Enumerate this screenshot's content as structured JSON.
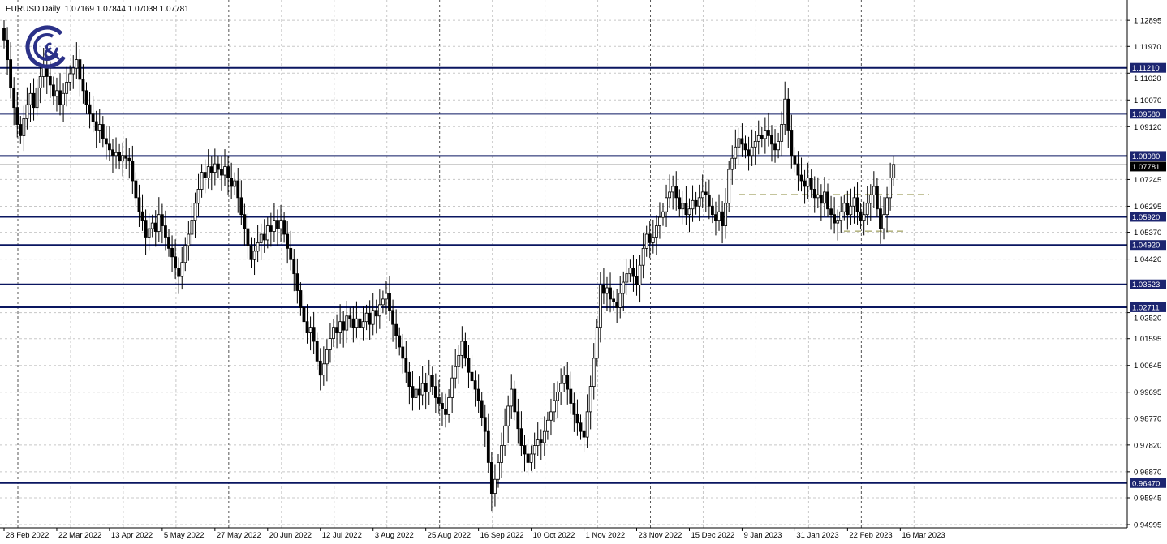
{
  "header": {
    "symbol": "EURUSD,Daily",
    "open": "1.07169",
    "high": "1.07844",
    "low": "1.07038",
    "close": "1.07781"
  },
  "logo": {
    "text": "G&C",
    "color": "#2b3188"
  },
  "colors": {
    "level_line": "#0a1660",
    "level_label_bg": "#1c2570",
    "price_label_bg": "#000000",
    "support_dash": "#8a8a3a",
    "grid": "#c8c8c8"
  },
  "chart_data": {
    "type": "candlestick",
    "title": "EURUSD,Daily",
    "ylim": [
      0.94995,
      1.1335
    ],
    "grid": true,
    "y_ticks": [
      "1.12895",
      "1.11970",
      "1.11020",
      "1.10070",
      "1.09120",
      "1.07245",
      "1.06295",
      "1.05370",
      "1.04420",
      "1.02520",
      "1.01595",
      "1.00645",
      "0.99695",
      "0.98770",
      "0.97820",
      "0.96870",
      "0.95945",
      "0.94995"
    ],
    "x_ticks": [
      "28 Feb 2022",
      "22 Mar 2022",
      "13 Apr 2022",
      "5 May 2022",
      "27 May 2022",
      "20 Jun 2022",
      "12 Jul 2022",
      "3 Aug 2022",
      "25 Aug 2022",
      "16 Sep 2022",
      "10 Oct 2022",
      "1 Nov 2022",
      "23 Nov 2022",
      "15 Dec 2022",
      "9 Jan 2023",
      "31 Jan 2023",
      "22 Feb 2023",
      "16 Mar 2023"
    ],
    "horizontal_levels": [
      "1.11210",
      "1.09580",
      "1.08080",
      "1.05920",
      "1.04920",
      "1.03523",
      "1.02711",
      "0.96470"
    ],
    "current_price": "1.07781",
    "dashed_levels": [
      1.0671,
      1.0541
    ],
    "closes": [
      1.122,
      1.115,
      1.105,
      1.098,
      1.092,
      1.088,
      1.094,
      1.099,
      1.103,
      1.098,
      1.105,
      1.109,
      1.113,
      1.109,
      1.106,
      1.102,
      1.104,
      1.099,
      1.103,
      1.107,
      1.11,
      1.112,
      1.115,
      1.108,
      1.104,
      1.099,
      1.096,
      1.093,
      1.09,
      1.092,
      1.087,
      1.085,
      1.083,
      1.081,
      1.082,
      1.079,
      1.081,
      1.08,
      1.079,
      1.072,
      1.066,
      1.061,
      1.058,
      1.052,
      1.055,
      1.057,
      1.054,
      1.06,
      1.056,
      1.052,
      1.048,
      1.045,
      1.041,
      1.038,
      1.043,
      1.049,
      1.053,
      1.058,
      1.064,
      1.069,
      1.075,
      1.073,
      1.077,
      1.075,
      1.078,
      1.076,
      1.074,
      1.077,
      1.073,
      1.07,
      1.072,
      1.066,
      1.06,
      1.055,
      1.049,
      1.044,
      1.047,
      1.05,
      1.053,
      1.051,
      1.056,
      1.054,
      1.058,
      1.055,
      1.058,
      1.053,
      1.048,
      1.044,
      1.039,
      1.033,
      1.027,
      1.022,
      1.018,
      1.02,
      1.015,
      1.008,
      1.003,
      1.007,
      1.012,
      1.016,
      1.02,
      1.018,
      1.022,
      1.019,
      1.024,
      1.023,
      1.02,
      1.023,
      1.02,
      1.022,
      1.025,
      1.021,
      1.026,
      1.024,
      1.028,
      1.03,
      1.032,
      1.026,
      1.021,
      1.017,
      1.013,
      1.009,
      1.004,
      0.999,
      0.995,
      0.998,
      0.996,
      1.0,
      0.997,
      1.003,
      0.999,
      0.995,
      0.993,
      0.991,
      0.989,
      0.995,
      1.002,
      1.006,
      1.01,
      1.015,
      1.009,
      1.004,
      1.001,
      0.998,
      0.994,
      0.988,
      0.983,
      0.972,
      0.961,
      0.966,
      0.972,
      0.978,
      0.985,
      0.992,
      0.998,
      0.99,
      0.984,
      0.978,
      0.975,
      0.972,
      0.975,
      0.978,
      0.98,
      0.979,
      0.983,
      0.987,
      0.99,
      0.994,
      0.997,
      1.0,
      1.003,
      0.998,
      0.993,
      0.989,
      0.986,
      0.983,
      0.981,
      0.99,
      0.999,
      1.009,
      1.02,
      1.035,
      1.032,
      1.034,
      1.03,
      1.029,
      1.027,
      1.032,
      1.036,
      1.039,
      1.041,
      1.038,
      1.035,
      1.042,
      1.048,
      1.053,
      1.05,
      1.052,
      1.056,
      1.059,
      1.061,
      1.066,
      1.068,
      1.07,
      1.066,
      1.062,
      1.064,
      1.06,
      1.062,
      1.065,
      1.063,
      1.066,
      1.068,
      1.067,
      1.063,
      1.06,
      1.058,
      1.061,
      1.056,
      1.064,
      1.076,
      1.08,
      1.084,
      1.087,
      1.085,
      1.083,
      1.081,
      1.084,
      1.086,
      1.088,
      1.087,
      1.09,
      1.088,
      1.085,
      1.083,
      1.086,
      1.092,
      1.101,
      1.09,
      1.081,
      1.078,
      1.074,
      1.072,
      1.07,
      1.073,
      1.069,
      1.066,
      1.067,
      1.064,
      1.068,
      1.062,
      1.06,
      1.057,
      1.058,
      1.061,
      1.064,
      1.06,
      1.063,
      1.066,
      1.061,
      1.058,
      1.06,
      1.064,
      1.067,
      1.07,
      1.062,
      1.055,
      1.06,
      1.066,
      1.073,
      1.07781
    ]
  }
}
